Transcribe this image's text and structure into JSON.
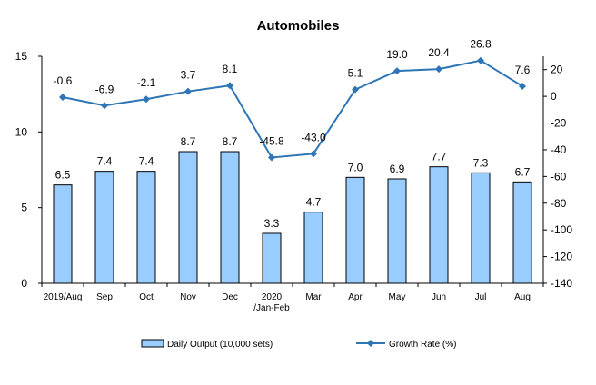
{
  "chart_data": {
    "type": "bar",
    "title": "Automobiles",
    "categories": [
      "2019/Aug",
      "Sep",
      "Oct",
      "Nov",
      "Dec",
      "2020\n/Jan-Feb",
      "Mar",
      "Apr",
      "May",
      "Jun",
      "Jul",
      "Aug"
    ],
    "series": [
      {
        "name": "Daily Output (10,000 sets)",
        "type": "bar",
        "axis": "left",
        "values": [
          6.5,
          7.4,
          7.4,
          8.7,
          8.7,
          3.3,
          4.7,
          7.0,
          6.9,
          7.7,
          7.3,
          6.7
        ],
        "labels": [
          "6.5",
          "7.4",
          "7.4",
          "8.7",
          "8.7",
          "3.3",
          "4.7",
          "7.0",
          "6.9",
          "7.7",
          "7.3",
          "6.7"
        ],
        "color": "#99ccff"
      },
      {
        "name": "Growth Rate (%)",
        "type": "line",
        "axis": "right",
        "values": [
          -0.6,
          -6.9,
          -2.1,
          3.7,
          8.1,
          -45.8,
          -43.0,
          5.1,
          19.0,
          20.4,
          26.8,
          7.6
        ],
        "labels": [
          "-0.6",
          "-6.9",
          "-2.1",
          "3.7",
          "8.1",
          "-45.8",
          "-43.0",
          "5.1",
          "19.0",
          "20.4",
          "26.8",
          "7.6"
        ],
        "color": "#2e75b6"
      }
    ],
    "y_left": {
      "range": [
        0,
        15
      ],
      "ticks": [
        0,
        5,
        10,
        15
      ],
      "tick_labels": [
        "0",
        "5",
        "10",
        "15"
      ]
    },
    "y_right": {
      "range": [
        -140,
        30
      ],
      "ticks": [
        20,
        0,
        -20,
        -40,
        -60,
        -80,
        -100,
        -120,
        -140
      ],
      "tick_labels": [
        "20",
        "0",
        "-20",
        "-40",
        "-60",
        "-80",
        "-100",
        "-120",
        "-140"
      ]
    },
    "grid": false,
    "legend": "bottom"
  }
}
